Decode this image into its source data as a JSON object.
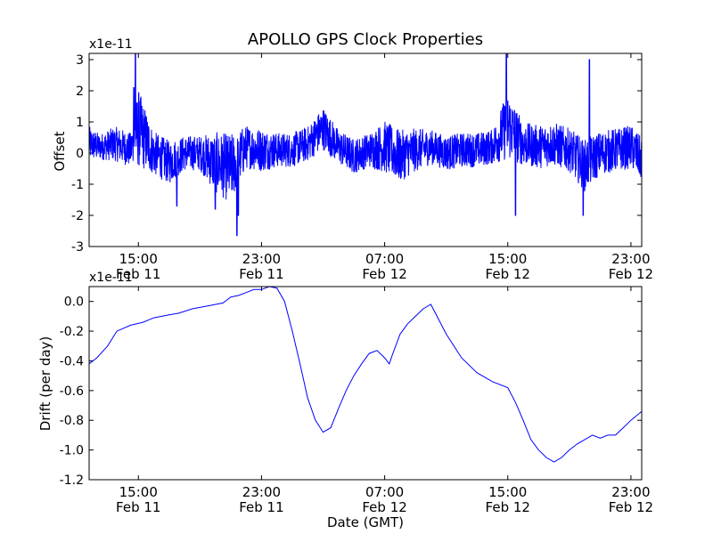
{
  "chart_data": [
    {
      "type": "line",
      "title": "APOLLO GPS Clock Properties",
      "ylabel": "Offset",
      "xlabel": "",
      "exponent_label": "x1e-11",
      "ylim": [
        -3,
        3.2
      ],
      "y_ticks": [
        "-3",
        "-2",
        "-1",
        "0",
        "1",
        "2",
        "3"
      ],
      "x_ticks": [
        {
          "time": "15:00",
          "date": "Feb 11"
        },
        {
          "time": "23:00",
          "date": "Feb 11"
        },
        {
          "time": "07:00",
          "date": "Feb 12"
        },
        {
          "time": "15:00",
          "date": "Feb 12"
        },
        {
          "time": "23:00",
          "date": "Feb 12"
        }
      ],
      "x_tick_hours": [
        15,
        23,
        31,
        39,
        47
      ],
      "xlim_hours": [
        11.8,
        47.7
      ],
      "series_color": "#0000ff",
      "envelope_hours": [
        11.8,
        12.5,
        13.5,
        14.5,
        15.0,
        16.0,
        17.0,
        18.0,
        19.0,
        20.0,
        21.0,
        22.0,
        23.0,
        24.0,
        25.0,
        26.0,
        27.0,
        28.0,
        29.0,
        30.0,
        31.0,
        32.0,
        33.0,
        34.0,
        35.0,
        36.0,
        37.0,
        38.0,
        39.0,
        40.0,
        41.0,
        42.0,
        43.0,
        44.0,
        45.0,
        46.0,
        47.0,
        47.7
      ],
      "envelope_mean": [
        0.3,
        0.2,
        0.3,
        0.1,
        0.8,
        0.0,
        -0.3,
        0.0,
        0.0,
        -0.3,
        -0.5,
        0.2,
        0.1,
        0.1,
        0.1,
        0.3,
        0.8,
        0.2,
        -0.1,
        0.1,
        0.2,
        -0.1,
        0.1,
        0.2,
        0.0,
        0.1,
        0.1,
        0.2,
        0.9,
        0.3,
        0.2,
        0.3,
        0.1,
        -0.4,
        0.0,
        0.1,
        0.2,
        -0.2
      ],
      "envelope_amplitude": [
        0.4,
        0.3,
        0.4,
        0.4,
        0.9,
        0.5,
        0.5,
        0.4,
        0.4,
        0.7,
        0.8,
        0.5,
        0.5,
        0.4,
        0.4,
        0.4,
        0.5,
        0.4,
        0.4,
        0.4,
        0.6,
        0.6,
        0.5,
        0.4,
        0.4,
        0.4,
        0.4,
        0.4,
        0.8,
        0.5,
        0.5,
        0.5,
        0.5,
        0.6,
        0.5,
        0.5,
        0.5,
        0.5
      ],
      "spikes": [
        {
          "hour": 14.8,
          "value": 3.2
        },
        {
          "hour": 14.7,
          "value": 2.1
        },
        {
          "hour": 21.4,
          "value": -2.65
        },
        {
          "hour": 21.5,
          "value": -2.0
        },
        {
          "hour": 38.9,
          "value": 3.2
        },
        {
          "hour": 39.5,
          "value": -2.0
        },
        {
          "hour": 43.9,
          "value": -2.0
        },
        {
          "hour": 44.3,
          "value": 3.0
        },
        {
          "hour": 20.0,
          "value": -1.8
        },
        {
          "hour": 17.5,
          "value": -1.7
        }
      ]
    },
    {
      "type": "line",
      "title": "",
      "ylabel": "Drift (per day)",
      "xlabel": "Date (GMT)",
      "exponent_label": "x1e-11",
      "ylim": [
        -1.2,
        0.1
      ],
      "y_ticks": [
        "-1.2",
        "-1.0",
        "-0.8",
        "-0.6",
        "-0.4",
        "-0.2",
        "0.0"
      ],
      "x_ticks": [
        {
          "time": "15:00",
          "date": "Feb 11"
        },
        {
          "time": "23:00",
          "date": "Feb 11"
        },
        {
          "time": "07:00",
          "date": "Feb 12"
        },
        {
          "time": "15:00",
          "date": "Feb 12"
        },
        {
          "time": "23:00",
          "date": "Feb 12"
        }
      ],
      "x_tick_hours": [
        15,
        23,
        31,
        39,
        47
      ],
      "xlim_hours": [
        11.8,
        47.7
      ],
      "series_color": "#0000ff",
      "x_hours": [
        11.8,
        12.3,
        13.0,
        13.6,
        14.5,
        15.3,
        16.0,
        17.0,
        17.6,
        18.5,
        19.5,
        20.5,
        21.0,
        21.5,
        22.0,
        22.5,
        23.0,
        23.5,
        24.0,
        24.5,
        25.0,
        25.5,
        26.0,
        26.5,
        27.0,
        27.5,
        28.0,
        28.5,
        29.0,
        29.5,
        30.0,
        30.5,
        31.0,
        31.3,
        31.5,
        32.0,
        32.5,
        33.0,
        33.5,
        34.0,
        35.0,
        36.0,
        37.0,
        38.0,
        39.0,
        39.5,
        40.0,
        40.5,
        41.0,
        41.5,
        42.0,
        42.5,
        43.0,
        43.5,
        44.0,
        44.5,
        45.0,
        45.5,
        46.0,
        46.5,
        47.0,
        47.7
      ],
      "y_values": [
        -0.42,
        -0.38,
        -0.3,
        -0.2,
        -0.16,
        -0.14,
        -0.11,
        -0.09,
        -0.08,
        -0.05,
        -0.03,
        -0.01,
        0.03,
        0.04,
        0.06,
        0.08,
        0.08,
        0.1,
        0.09,
        0.0,
        -0.2,
        -0.42,
        -0.65,
        -0.8,
        -0.88,
        -0.85,
        -0.72,
        -0.6,
        -0.5,
        -0.42,
        -0.35,
        -0.33,
        -0.38,
        -0.42,
        -0.36,
        -0.22,
        -0.15,
        -0.1,
        -0.05,
        -0.02,
        -0.22,
        -0.38,
        -0.48,
        -0.54,
        -0.58,
        -0.68,
        -0.8,
        -0.93,
        -1.0,
        -1.05,
        -1.08,
        -1.05,
        -1.0,
        -0.96,
        -0.93,
        -0.9,
        -0.92,
        -0.9,
        -0.9,
        -0.85,
        -0.8,
        -0.74
      ]
    }
  ]
}
